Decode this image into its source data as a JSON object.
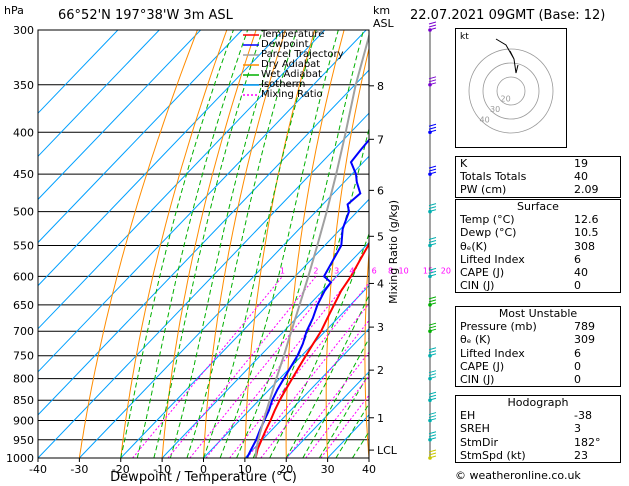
{
  "header": {
    "hpa": "hPa",
    "location": "66°52'N  197°38'W  3m  ASL",
    "km": "km",
    "asl": "ASL",
    "datetime": "22.07.2021  09GMT  (Base: 12)"
  },
  "legend": [
    {
      "label": "Temperature",
      "color": "#ff0000",
      "dash": ""
    },
    {
      "label": "Dewpoint",
      "color": "#0000ff",
      "dash": ""
    },
    {
      "label": "Parcel Trajectory",
      "color": "#a0a0a0",
      "dash": ""
    },
    {
      "label": "Dry Adiabat",
      "color": "#ff8c00",
      "dash": ""
    },
    {
      "label": "Wet Adiabat",
      "color": "#00b000",
      "dash": ""
    },
    {
      "label": "Isotherm",
      "color": "#00a0ff",
      "dash": ""
    },
    {
      "label": "Mixing Ratio",
      "color": "#ff00ff",
      "dash": "2,2"
    }
  ],
  "chart_data": {
    "type": "line",
    "xlabel": "Dewpoint / Temperature (°C)",
    "ylabel_right": "Mixing Ratio (g/kg)",
    "xlim": [
      -40,
      40
    ],
    "pressure_range": [
      1000,
      300
    ],
    "pressure_ticks": [
      300,
      350,
      400,
      450,
      500,
      550,
      600,
      650,
      700,
      750,
      800,
      850,
      900,
      950,
      1000
    ],
    "temperature_ticks": [
      -40,
      -30,
      -20,
      -10,
      0,
      10,
      20,
      30,
      40
    ],
    "km_ticks": [
      {
        "label": "8",
        "p": 351
      },
      {
        "label": "7",
        "p": 408
      },
      {
        "label": "6",
        "p": 471
      },
      {
        "label": "5",
        "p": 536
      },
      {
        "label": "4",
        "p": 612
      },
      {
        "label": "3",
        "p": 692
      },
      {
        "label": "2",
        "p": 781
      },
      {
        "label": "1",
        "p": 893
      },
      {
        "label": "LCL",
        "p": 978
      }
    ],
    "mixing_ratio_labels": [
      "1",
      "2",
      "3",
      "4",
      "6",
      "8",
      "10",
      "15",
      "20",
      "25"
    ],
    "mixing_ratio_values": [
      1,
      2,
      3,
      4,
      6,
      8,
      10,
      15,
      20,
      25
    ],
    "series": [
      {
        "name": "Temperature",
        "color": "#ff0000",
        "points": [
          [
            1000,
            12.6
          ],
          [
            975,
            11.0
          ],
          [
            950,
            9.8
          ],
          [
            925,
            8.6
          ],
          [
            900,
            7.5
          ],
          [
            875,
            6.2
          ],
          [
            850,
            5.0
          ],
          [
            825,
            4.0
          ],
          [
            800,
            3.0
          ],
          [
            775,
            2.0
          ],
          [
            750,
            1.0
          ],
          [
            725,
            0.0
          ],
          [
            700,
            -1.0
          ],
          [
            675,
            -2.5
          ],
          [
            650,
            -4.0
          ],
          [
            625,
            -5.5
          ],
          [
            600,
            -6.5
          ],
          [
            575,
            -8.0
          ],
          [
            550,
            -9.5
          ],
          [
            525,
            -11.5
          ],
          [
            500,
            -13.5
          ],
          [
            475,
            -15.5
          ],
          [
            450,
            -18.0
          ],
          [
            425,
            -20.5
          ],
          [
            400,
            -23.0
          ],
          [
            375,
            -26.5
          ],
          [
            350,
            -30.0
          ],
          [
            325,
            -34.5
          ],
          [
            300,
            -39.0
          ]
        ]
      },
      {
        "name": "Dewpoint",
        "color": "#0000ff",
        "points": [
          [
            1000,
            10.5
          ],
          [
            975,
            9.5
          ],
          [
            950,
            8.5
          ],
          [
            925,
            7.2
          ],
          [
            900,
            6.0
          ],
          [
            875,
            4.8
          ],
          [
            850,
            3.2
          ],
          [
            825,
            2.0
          ],
          [
            800,
            1.0
          ],
          [
            775,
            0.0
          ],
          [
            750,
            -1.0
          ],
          [
            725,
            -2.5
          ],
          [
            700,
            -4.5
          ],
          [
            675,
            -6.0
          ],
          [
            650,
            -8.0
          ],
          [
            625,
            -9.5
          ],
          [
            610,
            -10.0
          ],
          [
            600,
            -13.0
          ],
          [
            575,
            -14.5
          ],
          [
            550,
            -16.0
          ],
          [
            525,
            -19.5
          ],
          [
            500,
            -22.0
          ],
          [
            490,
            -24.0
          ],
          [
            475,
            -23.5
          ],
          [
            460,
            -27.0
          ],
          [
            450,
            -29.0
          ],
          [
            435,
            -33.0
          ],
          [
            420,
            -33.5
          ],
          [
            400,
            -34.0
          ],
          [
            375,
            -36.0
          ],
          [
            350,
            -38.0
          ],
          [
            325,
            -40.5
          ],
          [
            310,
            -45.0
          ],
          [
            300,
            -48.0
          ]
        ]
      },
      {
        "name": "Parcel Trajectory",
        "color": "#a0a0a0",
        "points": [
          [
            1000,
            12.6
          ],
          [
            978,
            10.9
          ],
          [
            950,
            9.0
          ],
          [
            900,
            5.8
          ],
          [
            850,
            2.6
          ],
          [
            800,
            -0.8
          ],
          [
            750,
            -4.3
          ],
          [
            700,
            -8.2
          ],
          [
            650,
            -12.3
          ],
          [
            600,
            -16.8
          ],
          [
            550,
            -21.8
          ],
          [
            500,
            -27.4
          ],
          [
            450,
            -33.8
          ],
          [
            400,
            -41.2
          ],
          [
            350,
            -49.8
          ],
          [
            300,
            -58.9
          ]
        ]
      }
    ]
  },
  "wind_profile": [
    {
      "p": 300,
      "color": "#7a00d0"
    },
    {
      "p": 350,
      "color": "#7a00d0"
    },
    {
      "p": 400,
      "color": "#0000ff"
    },
    {
      "p": 450,
      "color": "#0000ff"
    },
    {
      "p": 500,
      "color": "#00b0b0"
    },
    {
      "p": 550,
      "color": "#00b0b0"
    },
    {
      "p": 600,
      "color": "#00b0b0"
    },
    {
      "p": 650,
      "color": "#00b000"
    },
    {
      "p": 700,
      "color": "#00b000"
    },
    {
      "p": 750,
      "color": "#00b0b0"
    },
    {
      "p": 800,
      "color": "#00b0b0"
    },
    {
      "p": 850,
      "color": "#00b0b0"
    },
    {
      "p": 900,
      "color": "#00b0b0"
    },
    {
      "p": 950,
      "color": "#00b0b0"
    },
    {
      "p": 1000,
      "color": "#c8c800"
    }
  ],
  "hodograph": {
    "unit_label": "kt",
    "ring_labels": [
      "40",
      "30",
      "20"
    ]
  },
  "indices": [
    {
      "label": "K",
      "value": "19"
    },
    {
      "label": "Totals Totals",
      "value": "40"
    },
    {
      "label": "PW (cm)",
      "value": "2.09"
    }
  ],
  "surface": {
    "title": "Surface",
    "rows": [
      {
        "label": "Temp (°C)",
        "value": "12.6"
      },
      {
        "label": "Dewp (°C)",
        "value": "10.5"
      },
      {
        "label": "θₑ(K)",
        "value": "308"
      },
      {
        "label": "Lifted Index",
        "value": "6"
      },
      {
        "label": "CAPE (J)",
        "value": "40"
      },
      {
        "label": "CIN (J)",
        "value": "0"
      }
    ]
  },
  "most_unstable": {
    "title": "Most Unstable",
    "rows": [
      {
        "label": "Pressure (mb)",
        "value": "789"
      },
      {
        "label": "θₑ (K)",
        "value": "309"
      },
      {
        "label": "Lifted Index",
        "value": "6"
      },
      {
        "label": "CAPE (J)",
        "value": "0"
      },
      {
        "label": "CIN (J)",
        "value": "0"
      }
    ]
  },
  "hodograph_table": {
    "title": "Hodograph",
    "rows": [
      {
        "label": "EH",
        "value": "-38"
      },
      {
        "label": "SREH",
        "value": "3"
      },
      {
        "label": "StmDir",
        "value": "182°"
      },
      {
        "label": "StmSpd (kt)",
        "value": "23"
      }
    ]
  },
  "copyright": "© weatheronline.co.uk"
}
